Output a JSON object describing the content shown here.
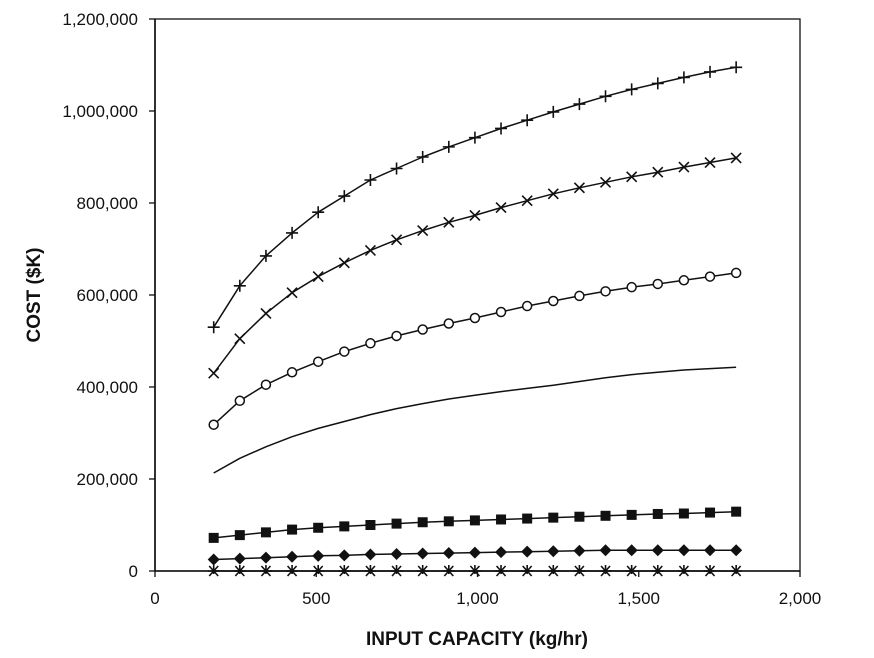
{
  "chart_data": {
    "type": "line",
    "title": "",
    "xlabel": "INPUT CAPACITY (kg/hr)",
    "ylabel": "COST ($K)",
    "xlim": [
      0,
      2000
    ],
    "ylim": [
      0,
      1200000
    ],
    "xticks": [
      0,
      500,
      1000,
      1500,
      2000
    ],
    "xtick_labels": [
      "0",
      "500",
      "1,000",
      "1,500",
      "2,000"
    ],
    "yticks": [
      0,
      200000,
      400000,
      600000,
      800000,
      1000000,
      1200000
    ],
    "ytick_labels": [
      "0",
      "200,000",
      "400,000",
      "600,000",
      "800,000",
      "1,000,000",
      "1,200,000"
    ],
    "grid": false,
    "legend": "none",
    "x": [
      182,
      263,
      344,
      425,
      506,
      587,
      668,
      749,
      830,
      911,
      992,
      1073,
      1154,
      1235,
      1316,
      1397,
      1478,
      1559,
      1640,
      1721,
      1802
    ],
    "series": [
      {
        "marker": "plus",
        "values": [
          530000,
          620000,
          685000,
          735000,
          780000,
          815000,
          850000,
          875000,
          900000,
          922000,
          942000,
          962000,
          980000,
          998000,
          1015000,
          1032000,
          1047000,
          1060000,
          1073000,
          1085000,
          1095000
        ]
      },
      {
        "marker": "x",
        "values": [
          430000,
          505000,
          560000,
          605000,
          640000,
          670000,
          697000,
          720000,
          740000,
          758000,
          773000,
          790000,
          805000,
          820000,
          833000,
          845000,
          857000,
          867000,
          878000,
          888000,
          898000
        ]
      },
      {
        "marker": "circle",
        "values": [
          318000,
          370000,
          405000,
          432000,
          455000,
          477000,
          495000,
          511000,
          525000,
          538000,
          550000,
          563000,
          576000,
          587000,
          598000,
          608000,
          617000,
          624000,
          632000,
          640000,
          648000
        ]
      },
      {
        "marker": "none",
        "values": [
          213000,
          245000,
          270000,
          292000,
          310000,
          325000,
          340000,
          353000,
          364000,
          374000,
          382000,
          390000,
          397000,
          404000,
          412000,
          420000,
          427000,
          432000,
          437000,
          440000,
          443000
        ]
      },
      {
        "marker": "square",
        "values": [
          72000,
          78000,
          84000,
          90000,
          94000,
          97000,
          100000,
          103000,
          106000,
          108000,
          110000,
          112000,
          114000,
          116000,
          118000,
          120000,
          122000,
          124000,
          125000,
          127000,
          129000
        ]
      },
      {
        "marker": "diamond",
        "values": [
          25000,
          27000,
          29000,
          31000,
          33000,
          34000,
          36000,
          37000,
          38000,
          39000,
          40000,
          41000,
          42000,
          43000,
          44000,
          45000,
          45000,
          45000,
          45000,
          45000,
          45000
        ]
      },
      {
        "marker": "asterisk",
        "values": [
          0,
          0,
          0,
          0,
          0,
          0,
          0,
          0,
          0,
          0,
          0,
          0,
          0,
          0,
          0,
          0,
          0,
          0,
          0,
          0,
          0
        ]
      }
    ],
    "line_color": "#111111"
  }
}
